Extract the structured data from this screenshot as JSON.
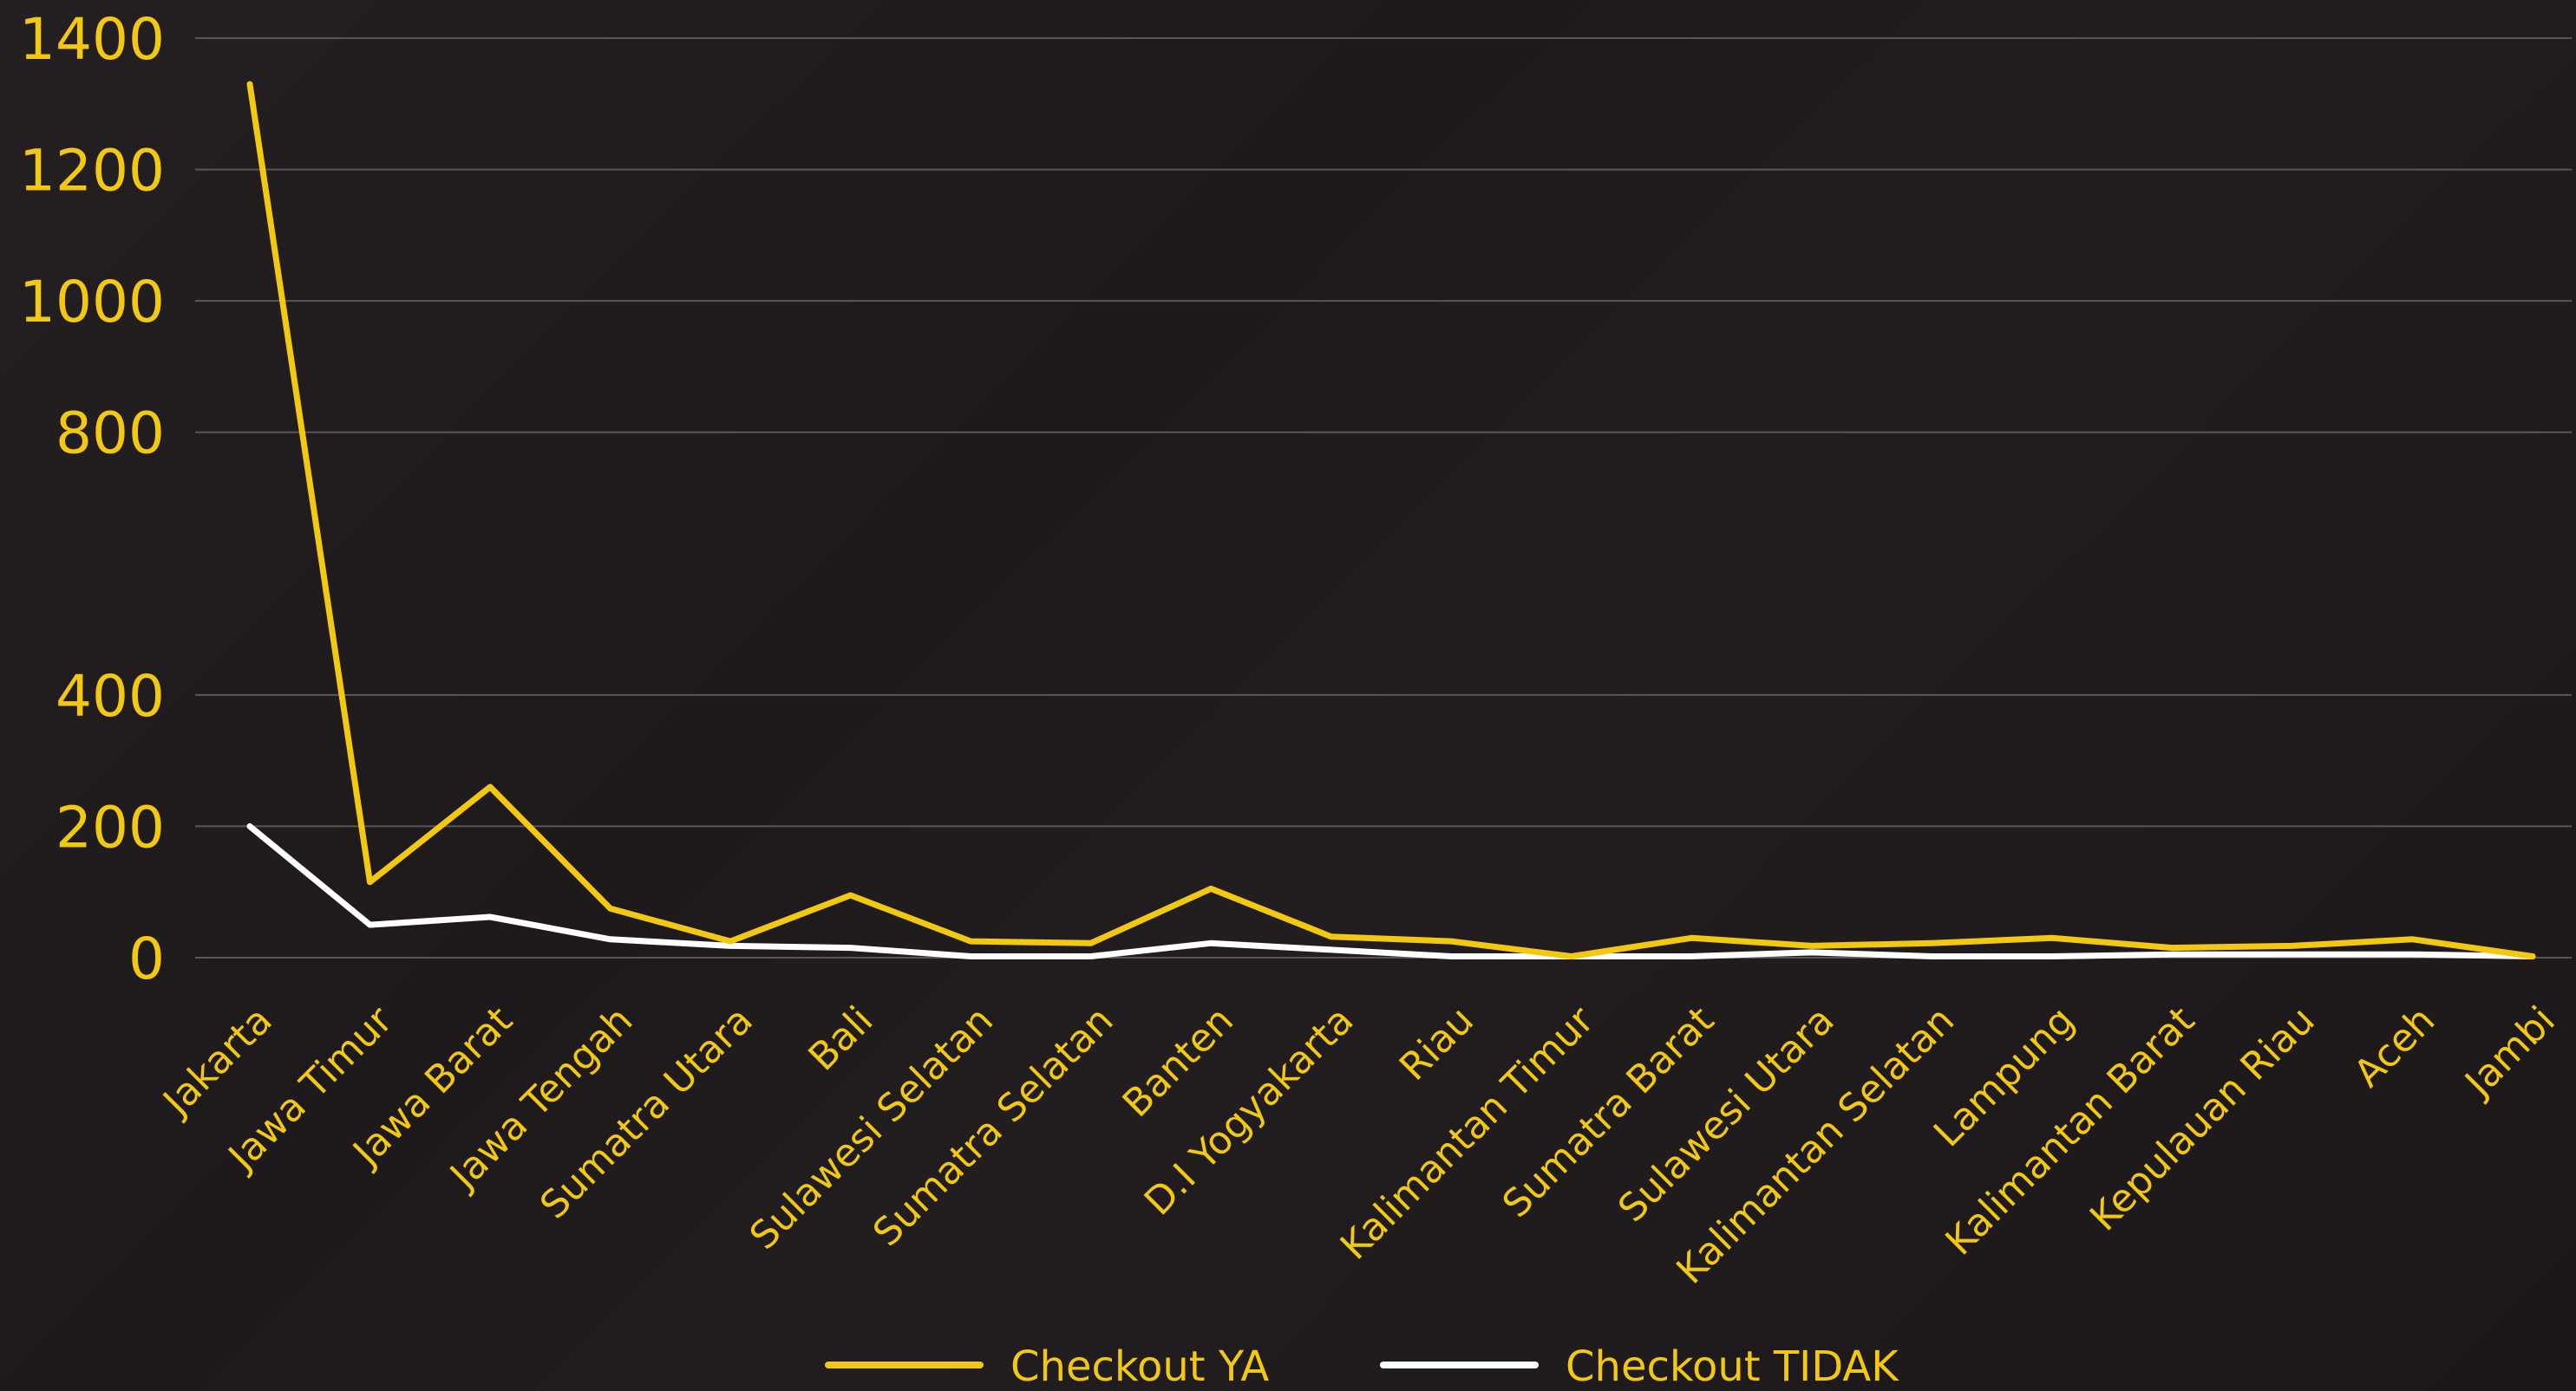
{
  "chart_data": {
    "type": "line",
    "categories": [
      "Jakarta",
      "Jawa Timur",
      "Jawa Barat",
      "Jawa Tengah",
      "Sumatra Utara",
      "Bali",
      "Sulawesi Selatan",
      "Sumatra Selatan",
      "Banten",
      "D.I Yogyakarta",
      "Riau",
      "Kalimantan Timur",
      "Sumatra Barat",
      "Sulawesi Utara",
      "Kalimantan Selatan",
      "Lampung",
      "Kalimantan Barat",
      "Kepulauan Riau",
      "Aceh",
      "Jambi"
    ],
    "series": [
      {
        "name": "Checkout YA",
        "color": "#f2c811",
        "values": [
          1330,
          115,
          260,
          75,
          25,
          95,
          25,
          22,
          105,
          32,
          25,
          2,
          30,
          18,
          22,
          30,
          15,
          18,
          28,
          2
        ]
      },
      {
        "name": "Checkout TIDAK",
        "color": "#ffffff",
        "values": [
          200,
          50,
          62,
          28,
          18,
          15,
          2,
          2,
          22,
          12,
          2,
          2,
          2,
          8,
          2,
          2,
          5,
          5,
          5,
          2
        ]
      }
    ],
    "yticks": [
      0,
      200,
      400,
      800,
      1000,
      1200,
      1400
    ],
    "ylim": [
      0,
      1400
    ],
    "grid": true,
    "legend_position": "bottom",
    "gridline_color": "#5a5556",
    "tick_color": "#f2c811"
  }
}
